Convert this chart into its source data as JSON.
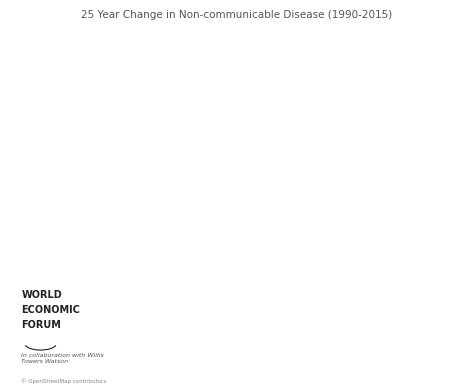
{
  "title": "25 Year Change in Non-communicable Disease (1990-2015)",
  "title_fontsize": 7.5,
  "title_color": "#555555",
  "background_color": "#ffffff",
  "country_color_map": {
    "GRL": "#c8c8c8",
    "ISL": "#b8b8c8",
    "NOR": "#b8b8c8",
    "SWE": "#b8b8c8",
    "FIN": "#b8b8c8",
    "DNK": "#b8b8c8",
    "EST": "#b8b8c8",
    "LVA": "#b8b8c8",
    "LTU": "#b8b8c8",
    "BLR": "#c0c0d0",
    "UKR": "#c0c0d0",
    "MDA": "#c0c0d0",
    "GEO": "#c0c0d0",
    "ARM": "#c0c0d0",
    "AZE": "#c0c0d0",
    "CAN": "#f5c990",
    "USA": "#f5c990",
    "MEX": "#f0a850",
    "GTM": "#f5c990",
    "BLZ": "#f5c990",
    "HND": "#f5c990",
    "SLV": "#f5c990",
    "NIC": "#f5c990",
    "CRI": "#f5c990",
    "PAN": "#f5c990",
    "CUB": "#f5c990",
    "JAM": "#f5c990",
    "HTI": "#f0a850",
    "DOM": "#f5c990",
    "TTO": "#f5c990",
    "VEN": "#f5c990",
    "COL": "#f5c990",
    "ECU": "#f0a850",
    "PER": "#f5c990",
    "BOL": "#f0a850",
    "CHL": "#f5c990",
    "ARG": "#f5c990",
    "URY": "#f5c990",
    "PRY": "#f5c990",
    "BRA": "#f5c990",
    "GUY": "#f5c990",
    "SUR": "#f5c990",
    "GBR": "#f5c990",
    "IRL": "#f5c990",
    "PRT": "#b8b8c8",
    "ESP": "#b8b8c8",
    "FRA": "#b8b8c8",
    "BEL": "#b8b8c8",
    "NLD": "#b8b8c8",
    "DEU": "#b8b8c8",
    "CHE": "#b8b8c8",
    "AUT": "#b8b8c8",
    "ITA": "#b8b8c8",
    "POL": "#b8b8c8",
    "CZE": "#b8b8c8",
    "SVK": "#b8b8c8",
    "HUN": "#b8b8c8",
    "ROU": "#c8b8b0",
    "BGR": "#c8b8b0",
    "SRB": "#c0b0a8",
    "HRV": "#b8b8c8",
    "BIH": "#b8b8c8",
    "ALB": "#b8b8c8",
    "MKD": "#b8b8c8",
    "GRC": "#b8b8c8",
    "MNE": "#b8b8c8",
    "SVN": "#b8b8c8",
    "LUX": "#b8b8c8",
    "CYP": "#b8b8c8",
    "MLT": "#b8b8c8",
    "XKX": "#b8b8c8",
    "TUR": "#f5c990",
    "MAR": "#f0a850",
    "DZA": "#f0a850",
    "TUN": "#f0a850",
    "LBY": "#f5c990",
    "EGY": "#f0a850",
    "KAZ": "#f5c990",
    "UZB": "#f5c990",
    "TKM": "#f5c990",
    "KGZ": "#f5c990",
    "TJK": "#f5c990",
    "MNG": "#f5c990",
    "CHN": "#f5c990",
    "JPN": "#f5c990",
    "KOR": "#f5c990",
    "PRK": "#f0a850",
    "LAO": "#f0a850",
    "VNM": "#f0a850",
    "THA": "#f5c990",
    "KHM": "#f0a850",
    "MYS": "#f5c990",
    "IDN": "#f5c990",
    "PHL": "#f5c990",
    "AUS": "#f5c990",
    "NZL": "#f5c990",
    "PNG": "#f0a850",
    "FJI": "#f5c990",
    "SLB": "#f5c990",
    "IND": "#f5c990",
    "PAK": "#f5c990",
    "AFG": "#f0a850",
    "NPL": "#f0a850",
    "BTN": "#f5c990",
    "BGD": "#f0a850",
    "LKA": "#f0a850",
    "MMR": "#f5c990",
    "MDG": "#f0a850",
    "MOZ": "#f0a850",
    "ZMB": "#f0a850",
    "ZWE": "#f0a850",
    "BWA": "#f0a850",
    "NAM": "#f0a850",
    "ZAF": "#f0a850",
    "LSO": "#e07020",
    "SWZ": "#e07020",
    "AGO": "#e07020",
    "COD": "#e07020",
    "TZA": "#e07020",
    "KEN": "#f0a850",
    "UGA": "#e07020",
    "RWA": "#e07020",
    "BDI": "#e07020",
    "ETH": "#e07020",
    "ERI": "#c04010",
    "DJI": "#f0a850",
    "SOM": "#c04010",
    "SDN": "#e07020",
    "SSD": "#c04010",
    "CAF": "#c04010",
    "CMR": "#f0a850",
    "NGA": "#e07020",
    "GHA": "#f0a850",
    "CIV": "#f0a850",
    "LBR": "#f0a850",
    "SLE": "#e07020",
    "GIN": "#e07020",
    "SEN": "#f0a850",
    "GMB": "#f0a850",
    "GNB": "#e07020",
    "TCD": "#e07020",
    "NER": "#f0a850",
    "MLI": "#f0a850",
    "BFA": "#f0a850",
    "MRT": "#f0a850",
    "IRN": "#f5c990",
    "IRQ": "#e07020",
    "SYR": "#f0a850",
    "LBN": "#f0a850",
    "JOR": "#f0a850",
    "ISR": "#f5c990",
    "PSE": "#e07020",
    "SAU": "#f5c990",
    "KWT": "#f0a850",
    "QAT": "#f0a850",
    "BHR": "#f0a850",
    "ARE": "#f0a850",
    "OMN": "#f0a850",
    "YEM": "#e07020",
    "GAB": "#f0a850",
    "COG": "#f0a850",
    "GNQ": "#f0a850",
    "TGO": "#e07020",
    "BEN": "#f0a850",
    "RUS": "#f5c990",
    "MDV": "#f0a850",
    "MWI": "#e07020"
  },
  "default_color": "#f5c990",
  "border_color": "#ffffff",
  "border_width": 0.3,
  "figsize": [
    4.74,
    3.92
  ],
  "dpi": 100,
  "xlim": [
    -180,
    180
  ],
  "ylim": [
    -60,
    85
  ],
  "logo_lines": [
    "WORLD",
    "ECONOMIC",
    "FORUM"
  ],
  "logo_fontsize": 7,
  "collab_text": "In collaboration with Willis\nTowers Watson",
  "collab_fontsize": 4.5,
  "credit_text": "© OpenStreetMap contributors",
  "credit_fontsize": 4.0
}
